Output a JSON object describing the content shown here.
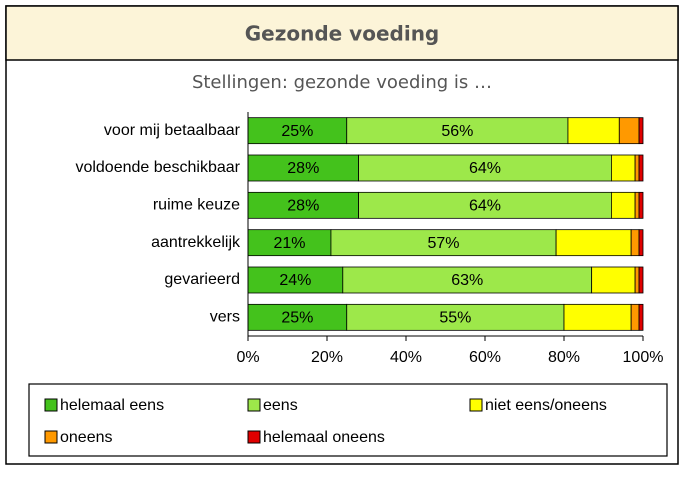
{
  "header": {
    "title": "Gezonde voeding"
  },
  "chart_data": {
    "type": "stacked-bar-horizontal",
    "title": "Stellingen: gezonde voeding is …",
    "categories": [
      "voor mij betaalbaar",
      "voldoende beschikbaar",
      "ruime keuze",
      "aantrekkelijk",
      "gevarieerd",
      "vers"
    ],
    "series": [
      {
        "name": "helemaal eens",
        "color": "#44c21c",
        "values": [
          25,
          28,
          28,
          21,
          24,
          25
        ],
        "value_labels": [
          "25%",
          "28%",
          "28%",
          "21%",
          "24%",
          "25%"
        ]
      },
      {
        "name": "eens",
        "color": "#9de84a",
        "values": [
          56,
          64,
          64,
          57,
          63,
          55
        ],
        "value_labels": [
          "56%",
          "64%",
          "64%",
          "57%",
          "63%",
          "55%"
        ]
      },
      {
        "name": "niet eens/oneens",
        "color": "#ffff00",
        "values": [
          13,
          6,
          6,
          19,
          11,
          17
        ]
      },
      {
        "name": "oneens",
        "color": "#ff9900",
        "values": [
          5,
          1,
          1,
          2,
          1,
          2
        ]
      },
      {
        "name": "helemaal oneens",
        "color": "#e00000",
        "values": [
          1,
          1,
          1,
          1,
          1,
          1
        ]
      }
    ],
    "xlim": [
      0,
      100
    ],
    "xticks": [
      {
        "value": 0,
        "label": "0%"
      },
      {
        "value": 20,
        "label": "20%"
      },
      {
        "value": 40,
        "label": "40%"
      },
      {
        "value": 60,
        "label": "60%"
      },
      {
        "value": 80,
        "label": "80%"
      },
      {
        "value": 100,
        "label": "100%"
      }
    ],
    "legend": "bottom"
  }
}
